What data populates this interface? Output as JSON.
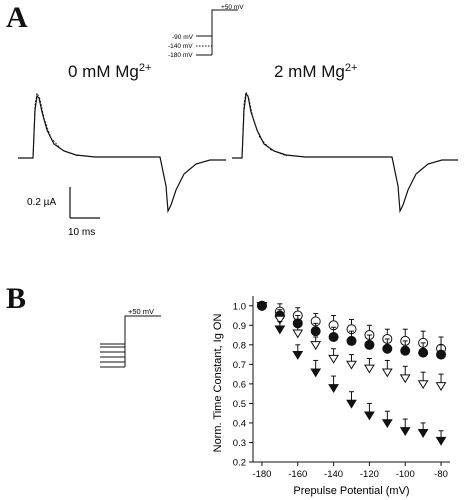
{
  "panels": {
    "a": {
      "letter": "A",
      "protocol_labels": {
        "hold": "+50 mV",
        "v1": "-90 mV",
        "v2": "-140 mV",
        "v3": "-180 mV"
      },
      "conditions": [
        {
          "text": "0 mM Mg",
          "sup": "2+"
        },
        {
          "text": "2 mM Mg",
          "sup": "2+"
        }
      ],
      "scalebar": {
        "current": "0.2 µA",
        "time": "10 ms"
      }
    },
    "b": {
      "letter": "B",
      "protocol_label": "+50 mV"
    }
  },
  "chart_data": {
    "type": "scatter",
    "xlabel": "Prepulse Potential (mV)",
    "ylabel": "Norm. Time Constant, Ig ON",
    "xlim": [
      -185,
      -75
    ],
    "ylim": [
      0.2,
      1.05
    ],
    "xticks": [
      -180,
      -160,
      -140,
      -120,
      -100,
      -80
    ],
    "yticks": [
      0.2,
      0.3,
      0.4,
      0.5,
      0.6,
      0.7,
      0.8,
      0.9,
      1.0
    ],
    "ytick_labels": [
      "0.2",
      "0.3",
      "0.4",
      "0.5",
      "0.6",
      "0.7",
      "0.8",
      "0.9",
      "1.0"
    ],
    "series": [
      {
        "marker": "open-circle",
        "x": [
          -180,
          -170,
          -160,
          -150,
          -140,
          -130,
          -120,
          -110,
          -100,
          -90,
          -80
        ],
        "y": [
          1.0,
          0.97,
          0.95,
          0.92,
          0.9,
          0.88,
          0.85,
          0.83,
          0.82,
          0.81,
          0.78
        ],
        "err": [
          0,
          0.04,
          0.04,
          0.04,
          0.05,
          0.05,
          0.05,
          0.05,
          0.06,
          0.06,
          0.06
        ]
      },
      {
        "marker": "filled-circle",
        "x": [
          -180,
          -170,
          -160,
          -150,
          -140,
          -130,
          -120,
          -110,
          -100,
          -90,
          -80
        ],
        "y": [
          1.0,
          0.95,
          0.91,
          0.87,
          0.84,
          0.82,
          0.8,
          0.78,
          0.77,
          0.76,
          0.75
        ],
        "err": [
          0,
          0.03,
          0.04,
          0.04,
          0.05,
          0.05,
          0.05,
          0.05,
          0.05,
          0.05,
          0.05
        ]
      },
      {
        "marker": "open-triangle-down",
        "x": [
          -180,
          -170,
          -160,
          -150,
          -140,
          -130,
          -120,
          -110,
          -100,
          -90,
          -80
        ],
        "y": [
          1.0,
          0.93,
          0.86,
          0.8,
          0.73,
          0.7,
          0.68,
          0.66,
          0.63,
          0.6,
          0.59
        ],
        "err": [
          0,
          0.03,
          0.04,
          0.04,
          0.05,
          0.05,
          0.05,
          0.06,
          0.06,
          0.06,
          0.06
        ]
      },
      {
        "marker": "filled-triangle-down",
        "x": [
          -180,
          -170,
          -160,
          -150,
          -140,
          -130,
          -120,
          -110,
          -100,
          -90,
          -80
        ],
        "y": [
          1.0,
          0.88,
          0.75,
          0.66,
          0.58,
          0.5,
          0.44,
          0.4,
          0.36,
          0.35,
          0.31
        ],
        "err": [
          0,
          0.04,
          0.05,
          0.06,
          0.06,
          0.06,
          0.06,
          0.06,
          0.06,
          0.05,
          0.05
        ]
      }
    ]
  }
}
